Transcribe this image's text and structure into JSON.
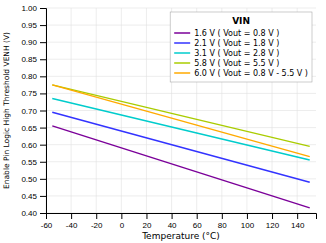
{
  "chart_data": {
    "type": "line",
    "xlabel": "Temperature (°C)",
    "ylabel": "Enable Pin Logic High Threshold VENH (V)",
    "legend_title": "VIN",
    "x": [
      -55,
      150
    ],
    "series": [
      {
        "name": "1.6 V ( Vout = 0.8 V )",
        "color": "#7b0099",
        "values": [
          0.655,
          0.415
        ]
      },
      {
        "name": "2.1 V ( Vout = 1.8 V )",
        "color": "#3333ff",
        "values": [
          0.695,
          0.49
        ]
      },
      {
        "name": "3.1 V ( Vout = 2.8 V )",
        "color": "#00cccc",
        "values": [
          0.735,
          0.555
        ]
      },
      {
        "name": "5.8 V ( Vout = 5.5 V )",
        "color": "#aacc00",
        "values": [
          0.775,
          0.595
        ]
      },
      {
        "name": "6.0 V ( Vout = 0.8 V - 5.5 V )",
        "color": "#ffaa00",
        "values": [
          0.775,
          0.565
        ]
      }
    ],
    "xlim": [
      -60,
      155
    ],
    "ylim": [
      0.4,
      1.0
    ],
    "xticks": [
      -60,
      -40,
      -20,
      0,
      20,
      40,
      60,
      80,
      100,
      120,
      140
    ],
    "yticks": [
      {
        "value": 0.4,
        "label": "0.40"
      },
      0.45,
      {
        "value": 0.5,
        "label": "0.50"
      },
      0.55,
      {
        "value": 0.6,
        "label": "0.60"
      },
      0.65,
      {
        "value": 0.7,
        "label": "0.70"
      },
      0.75,
      {
        "value": 0.8,
        "label": "0.80"
      },
      0.85,
      {
        "value": 0.9,
        "label": "0.90"
      },
      0.95,
      {
        "value": 1.0,
        "label": "1.00"
      }
    ],
    "grid": true,
    "legend": "upper right"
  }
}
